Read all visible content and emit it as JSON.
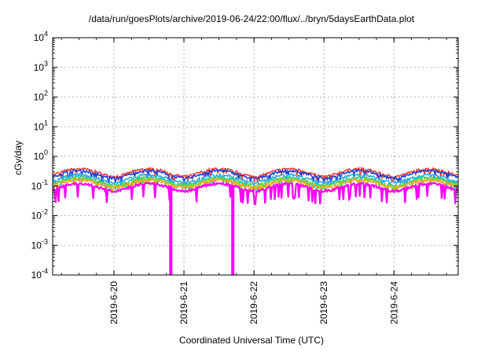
{
  "chart_data": {
    "type": "line",
    "title": "/data/run/goesPlots/archive/2019-06-24/22:00/flux/../bryn/5daysEarthData.plot",
    "xlabel": "Coordinated Universal Time (UTC)",
    "ylabel": "cGy/day",
    "yscale": "log",
    "ylim": [
      0.0001,
      10000
    ],
    "xlim": [
      "2019-06-19 03:00",
      "2019-06-24 22:00"
    ],
    "y_tick_labels": [
      {
        "base": "10",
        "exp": "-4"
      },
      {
        "base": "10",
        "exp": "-3"
      },
      {
        "base": "10",
        "exp": "-2"
      },
      {
        "base": "10",
        "exp": "-1"
      },
      {
        "base": "10",
        "exp": "0"
      },
      {
        "base": "10",
        "exp": "1"
      },
      {
        "base": "10",
        "exp": "2"
      },
      {
        "base": "10",
        "exp": "3"
      },
      {
        "base": "10",
        "exp": "4"
      }
    ],
    "x_ticks": [
      "2019-6-20",
      "2019-6-21",
      "2019-6-22",
      "2019-6-23",
      "2019-6-24"
    ],
    "grid": true,
    "legend": "none",
    "series": [
      {
        "color": "#ff3b2f",
        "level": 0.38
      },
      {
        "color": "#1f3fd6",
        "level": 0.33
      },
      {
        "color": "#2fa8e0",
        "level": 0.24
      },
      {
        "color": "#22c9b8",
        "level": 0.2
      },
      {
        "color": "#7ed321",
        "level": 0.18
      },
      {
        "color": "#f5a623",
        "level": 0.16
      },
      {
        "color": "#ff00ff",
        "level": 0.12
      }
    ],
    "dropouts": [
      {
        "x": "2019-06-20 19:30",
        "y": 0.0001
      },
      {
        "x": "2019-06-21 16:45",
        "y": 0.0001
      }
    ]
  }
}
